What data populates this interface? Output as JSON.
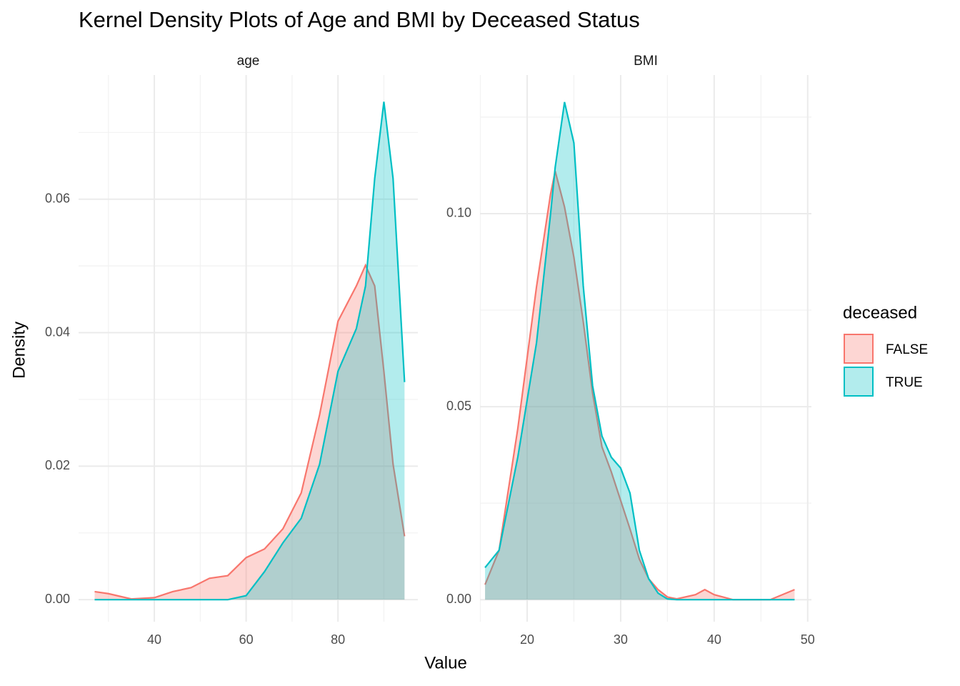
{
  "title": "Kernel Density Plots of Age and BMI by Deceased Status",
  "x_label": "Value",
  "y_label": "Density",
  "legend_title": "deceased",
  "chart_data": [
    {
      "type": "area",
      "title": "age",
      "x": [
        27,
        30,
        35,
        40,
        44,
        48,
        52,
        56,
        60,
        64,
        68,
        72,
        76,
        80,
        84,
        86,
        88,
        90,
        92,
        94.5
      ],
      "series": [
        {
          "name": "FALSE",
          "color": "#f8766d",
          "values": [
            0.0012,
            0.0009,
            0.0001,
            0.0003,
            0.0012,
            0.0018,
            0.0032,
            0.0036,
            0.0063,
            0.0076,
            0.0106,
            0.016,
            0.0277,
            0.0417,
            0.047,
            0.0501,
            0.047,
            0.0342,
            0.0203,
            0.0095
          ]
        },
        {
          "name": "TRUE",
          "color": "#00bfc4",
          "values": [
            0,
            0,
            0,
            0,
            0,
            0,
            0,
            0,
            0.0006,
            0.0042,
            0.0085,
            0.0122,
            0.0203,
            0.0342,
            0.0406,
            0.047,
            0.0631,
            0.0746,
            0.0631,
            0.0326
          ]
        }
      ],
      "xlim": [
        23.5,
        97.4
      ],
      "ylim": [
        -0.0033,
        0.0786
      ],
      "xticks": [
        40,
        60,
        80
      ],
      "yticks": [
        {
          "value": 0,
          "label": "0.00"
        },
        {
          "value": 0.02,
          "label": "0.02"
        },
        {
          "value": 0.04,
          "label": "0.04"
        },
        {
          "value": 0.06,
          "label": "0.06"
        }
      ],
      "grid": true
    },
    {
      "type": "area",
      "title": "BMI",
      "x": [
        15.5,
        17,
        19,
        21,
        22.5,
        23,
        24,
        25,
        26,
        27,
        28,
        29,
        30,
        31,
        32,
        33,
        34,
        35,
        36,
        38,
        39,
        40,
        42,
        46,
        48.6
      ],
      "series": [
        {
          "name": "FALSE",
          "color": "#f8766d",
          "values": [
            0.0039,
            0.0128,
            0.0443,
            0.081,
            0.105,
            0.111,
            0.1017,
            0.0887,
            0.072,
            0.0535,
            0.0396,
            0.0331,
            0.0257,
            0.0183,
            0.0105,
            0.0054,
            0.0026,
            0.0007,
            0.0002,
            0.0013,
            0.0026,
            0.0013,
            0,
            0,
            0.0026
          ]
        },
        {
          "name": "TRUE",
          "color": "#00bfc4",
          "values": [
            0.0083,
            0.0128,
            0.0369,
            0.0665,
            0.0998,
            0.112,
            0.1289,
            0.1183,
            0.0813,
            0.0554,
            0.0424,
            0.0369,
            0.0341,
            0.0276,
            0.0128,
            0.0054,
            0.0017,
            0.0002,
            0,
            0,
            0,
            0,
            0,
            0,
            0
          ]
        }
      ],
      "xlim": [
        14.96,
        50.4
      ],
      "ylim": [
        -0.0057,
        0.1359
      ],
      "xticks": [
        20,
        30,
        40,
        50
      ],
      "yticks": [
        {
          "value": 0,
          "label": "0.00"
        },
        {
          "value": 0.05,
          "label": "0.05"
        },
        {
          "value": 0.1,
          "label": "0.10"
        }
      ],
      "grid": true
    }
  ]
}
